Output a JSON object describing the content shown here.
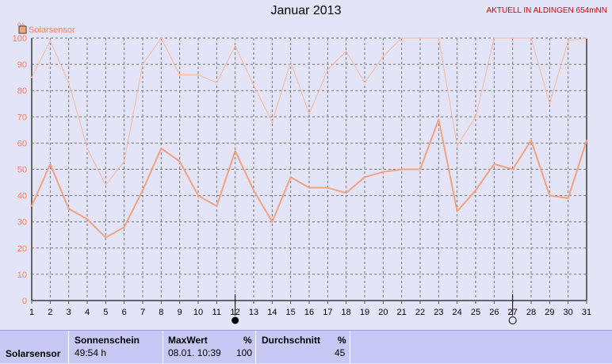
{
  "header": {
    "title": "Januar 2013",
    "station": "AKTUELL IN ALDINGEN 654mNN"
  },
  "markers": {
    "filled_day": 12,
    "open_day": 27
  },
  "chart_data": {
    "type": "line",
    "ylabel": "%",
    "ylim": [
      0,
      100
    ],
    "yticks": [
      0,
      10,
      20,
      30,
      40,
      50,
      60,
      70,
      80,
      90,
      100
    ],
    "x": [
      1,
      2,
      3,
      4,
      5,
      6,
      7,
      8,
      9,
      10,
      11,
      12,
      13,
      14,
      15,
      16,
      17,
      18,
      19,
      20,
      21,
      22,
      23,
      24,
      25,
      26,
      27,
      28,
      29,
      30,
      31
    ],
    "grid": true,
    "legend": "top-left",
    "series": [
      {
        "name": "Solarsensor",
        "color": "#f4a27e",
        "values": [
          36,
          52,
          35,
          31,
          24,
          28,
          42,
          58,
          53,
          40,
          36,
          57,
          42,
          30,
          47,
          43,
          43,
          41,
          47,
          49,
          50,
          50,
          69,
          34,
          42,
          52,
          50,
          61,
          40,
          39,
          61
        ]
      },
      {
        "color": "#f8b89c",
        "values": [
          85,
          99,
          83,
          58,
          44,
          53,
          90,
          100,
          86,
          86,
          83,
          97,
          82,
          68,
          91,
          71,
          88,
          95,
          83,
          93,
          100,
          100,
          100,
          59,
          70,
          100,
          100,
          100,
          75,
          99,
          100
        ]
      }
    ]
  },
  "summary": {
    "row_label": "Solarsensor",
    "sonnenschein": {
      "header": "Sonnenschein",
      "value": "49:54 h"
    },
    "maxwert": {
      "header": "MaxWert",
      "unit": "%",
      "datetime": "08.01.  10:39",
      "value": "100"
    },
    "durchschnitt": {
      "header": "Durchschnitt",
      "unit": "%",
      "value": "45"
    }
  }
}
